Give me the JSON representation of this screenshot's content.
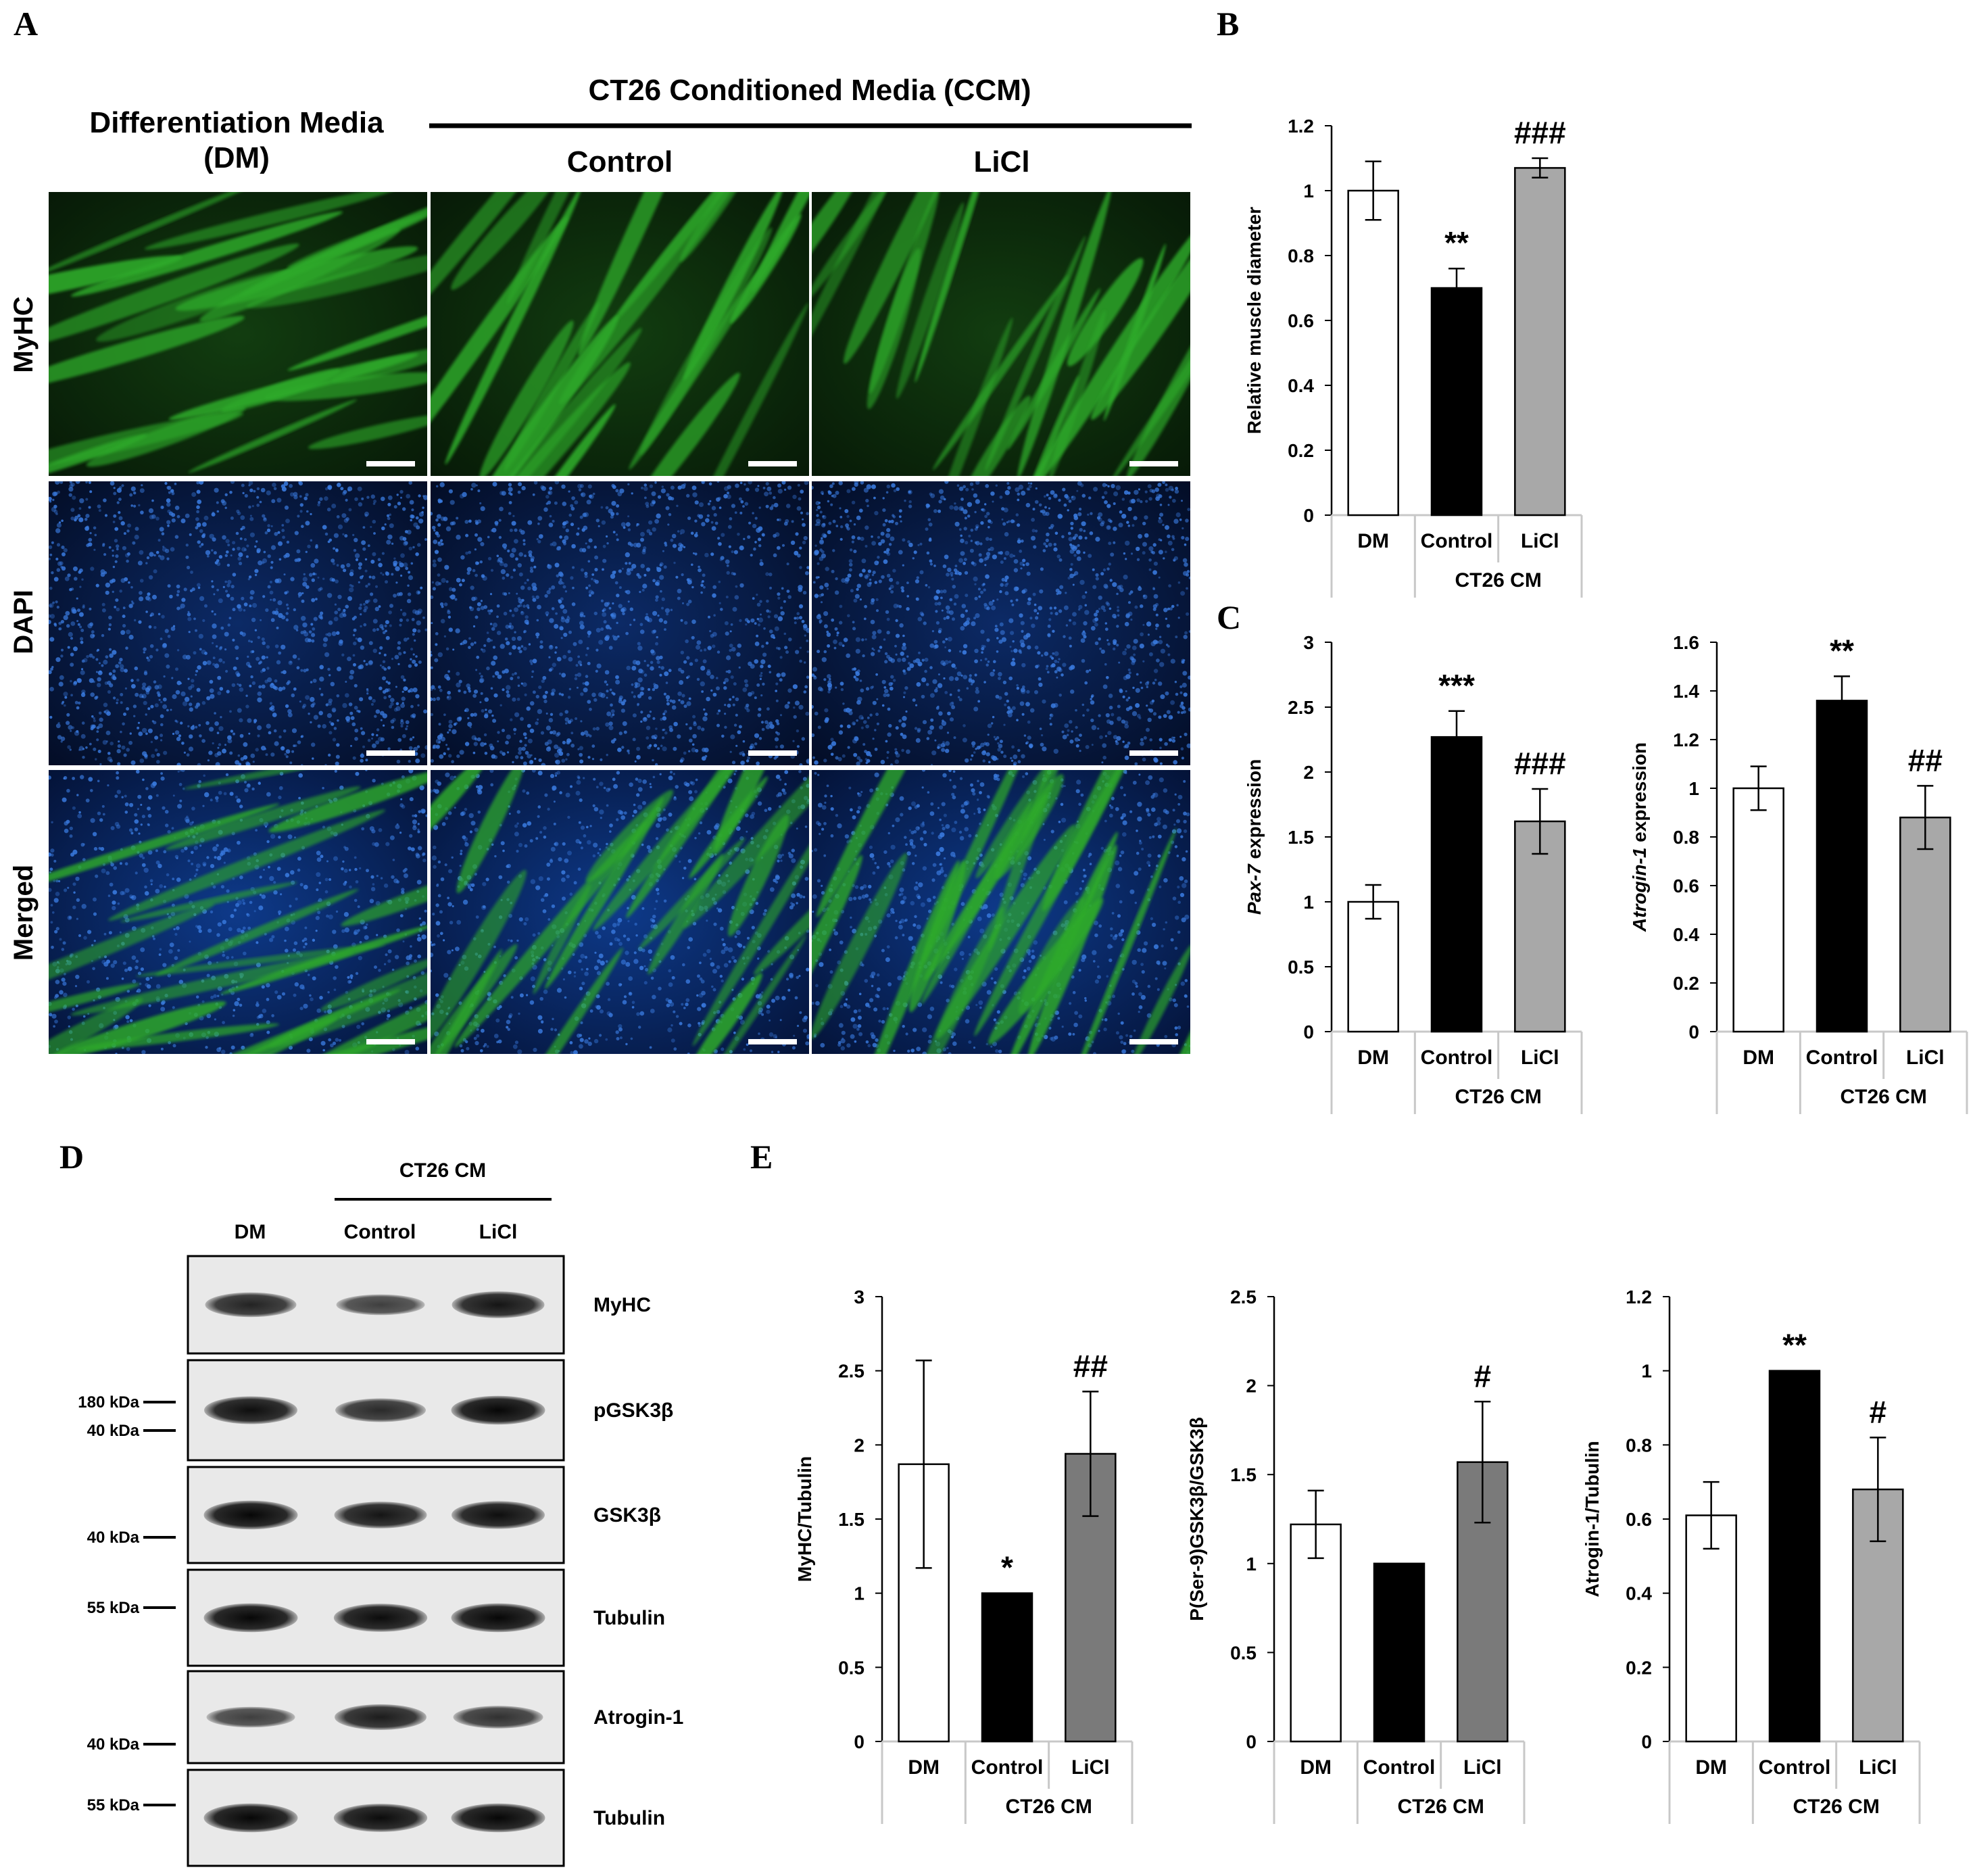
{
  "panels": {
    "a": "A",
    "b": "B",
    "c": "C",
    "d": "D",
    "e": "E"
  },
  "micro": {
    "header_ccm": "CT26 Conditioned Media (CCM)",
    "header_dm_line1": "Differentiation Media",
    "header_dm_line2": "(DM)",
    "col_control": "Control",
    "col_licl": "LiCl",
    "rows": [
      "MyHC",
      "DAPI",
      "Merged"
    ],
    "colors": {
      "myhc": "#2faa2a",
      "dapi": "#3a7be0",
      "dark": "#06180a"
    }
  },
  "western": {
    "group_label": "CT26 CM",
    "lanes": [
      "DM",
      "Control",
      "LiCl"
    ],
    "bands": [
      {
        "name": "MyHC",
        "marker": "180 kDa",
        "intensity": [
          0.75,
          0.55,
          0.85
        ]
      },
      {
        "name": "pGSK3β",
        "marker": "40 kDa",
        "intensity": [
          0.9,
          0.7,
          0.95
        ]
      },
      {
        "name": "GSK3β",
        "marker": "40 kDa",
        "intensity": [
          0.95,
          0.85,
          0.9
        ]
      },
      {
        "name": "Tubulin",
        "marker": "55 kDa",
        "intensity": [
          0.95,
          0.92,
          0.95
        ]
      },
      {
        "name": "Atrogin-1",
        "marker": "40 kDa",
        "intensity": [
          0.55,
          0.8,
          0.65
        ]
      },
      {
        "name": "Tubulin",
        "marker": "55 kDa",
        "intensity": [
          0.95,
          0.92,
          0.95
        ]
      }
    ]
  },
  "chart_data": [
    {
      "id": "B",
      "type": "bar",
      "group_label": "CT26 CM",
      "categories": [
        "DM",
        "Control",
        "LiCl"
      ],
      "values": [
        1.0,
        0.7,
        1.07
      ],
      "errors": [
        0.09,
        0.06,
        0.03
      ],
      "significance": [
        "",
        "**",
        "###"
      ],
      "ylabel": "Relative muscle diameter",
      "ylabel_italic": "",
      "ylim": [
        0,
        1.2
      ],
      "yticks": [
        "0",
        "0.2",
        "0.4",
        "0.6",
        "0.8",
        "1",
        "1.2"
      ],
      "colors": [
        "#ffffff",
        "#000000",
        "#a8a8a8"
      ]
    },
    {
      "id": "C1",
      "type": "bar",
      "group_label": "CT26 CM",
      "categories": [
        "DM",
        "Control",
        "LiCl"
      ],
      "values": [
        1.0,
        2.27,
        1.62
      ],
      "errors": [
        0.13,
        0.2,
        0.25
      ],
      "significance": [
        "",
        "***",
        "###"
      ],
      "ylabel": " expression",
      "ylabel_italic": "Pax-7",
      "ylim": [
        0,
        3
      ],
      "yticks": [
        "0",
        "0.5",
        "1",
        "1.5",
        "2",
        "2.5",
        "3"
      ],
      "colors": [
        "#ffffff",
        "#000000",
        "#a8a8a8"
      ]
    },
    {
      "id": "C2",
      "type": "bar",
      "group_label": "CT26 CM",
      "categories": [
        "DM",
        "Control",
        "LiCl"
      ],
      "values": [
        1.0,
        1.36,
        0.88
      ],
      "errors": [
        0.09,
        0.1,
        0.13
      ],
      "significance": [
        "",
        "**",
        "##"
      ],
      "ylabel": " expression",
      "ylabel_italic": "Atrogin-1",
      "ylim": [
        0,
        1.6
      ],
      "yticks": [
        "0",
        "0.2",
        "0.4",
        "0.6",
        "0.8",
        "1",
        "1.2",
        "1.4",
        "1.6"
      ],
      "colors": [
        "#ffffff",
        "#000000",
        "#a8a8a8"
      ]
    },
    {
      "id": "E1",
      "type": "bar",
      "group_label": "CT26 CM",
      "categories": [
        "DM",
        "Control",
        "LiCl"
      ],
      "values": [
        1.87,
        1.0,
        1.94
      ],
      "errors": [
        0.7,
        0.0,
        0.42
      ],
      "significance": [
        "",
        "*",
        "##"
      ],
      "ylabel": "MyHC/Tubulin",
      "ylabel_italic": "",
      "ylim": [
        0,
        3
      ],
      "yticks": [
        "0",
        "0.5",
        "1",
        "1.5",
        "2",
        "2.5",
        "3"
      ],
      "colors": [
        "#ffffff",
        "#000000",
        "#7a7a7a"
      ]
    },
    {
      "id": "E2",
      "type": "bar",
      "group_label": "CT26 CM",
      "categories": [
        "DM",
        "Control",
        "LiCl"
      ],
      "values": [
        1.22,
        1.0,
        1.57
      ],
      "errors": [
        0.19,
        0.0,
        0.34
      ],
      "significance": [
        "",
        "",
        "#"
      ],
      "ylabel": "P(Ser-9)GSK3β/GSK3β",
      "ylabel_italic": "",
      "ylim": [
        0,
        2.5
      ],
      "yticks": [
        "0",
        "0.5",
        "1",
        "1.5",
        "2",
        "2.5"
      ],
      "colors": [
        "#ffffff",
        "#000000",
        "#7a7a7a"
      ]
    },
    {
      "id": "E3",
      "type": "bar",
      "group_label": "CT26 CM",
      "categories": [
        "DM",
        "Control",
        "LiCl"
      ],
      "values": [
        0.61,
        1.0,
        0.68
      ],
      "errors": [
        0.09,
        0.0,
        0.14
      ],
      "significance": [
        "",
        "**",
        "#"
      ],
      "ylabel": "Atrogin-1/Tubulin",
      "ylabel_italic": "",
      "ylim": [
        0,
        1.2
      ],
      "yticks": [
        "0",
        "0.2",
        "0.4",
        "0.6",
        "0.8",
        "1",
        "1.2"
      ],
      "colors": [
        "#ffffff",
        "#000000",
        "#a8a8a8"
      ]
    }
  ]
}
